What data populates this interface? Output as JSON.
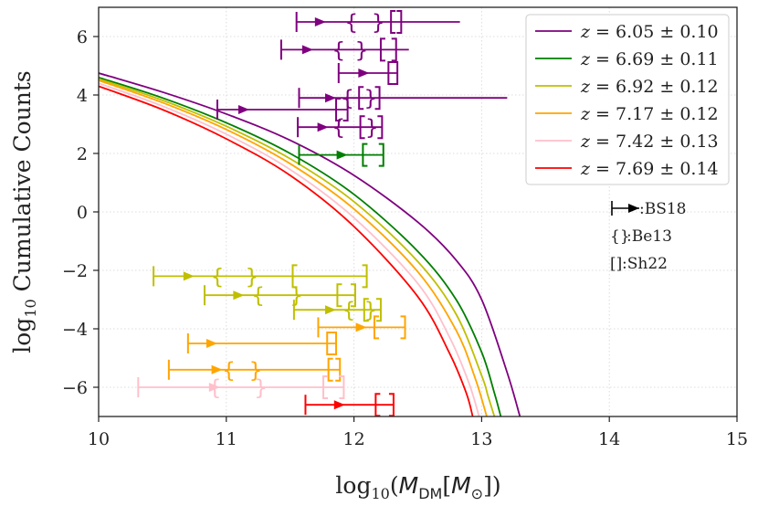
{
  "chart_data": {
    "type": "line",
    "xlabel": "log10(M_DM[M_⊙])",
    "ylabel": "log10 Cumulative Counts",
    "xlabel_parts": {
      "log": "log",
      "sub": "10",
      "open": "(",
      "M": "M",
      "DM": "DM",
      "bropen": "[",
      "Msun": "M",
      "sun": "⊙",
      "close": "])"
    },
    "ylabel_parts": {
      "log": "log",
      "sub": "10",
      "rest": " Cumulative Counts"
    },
    "xlim": [
      10,
      15
    ],
    "ylim": [
      -7,
      7
    ],
    "x_ticks": [
      10,
      11,
      12,
      13,
      14,
      15
    ],
    "y_ticks": [
      -6,
      -4,
      -2,
      0,
      2,
      4,
      6
    ],
    "x_tick_labels": [
      "10",
      "11",
      "12",
      "13",
      "14",
      "15"
    ],
    "y_tick_labels": [
      "−6",
      "−4",
      "−2",
      "0",
      "2",
      "4",
      "6"
    ],
    "grid": true,
    "legend_position": "top-right",
    "series": [
      {
        "name": "z = 6.05 ± 0.10",
        "label_z": "z",
        "label_eq": " = 6.05 ± 0.10",
        "color": "#7f007f",
        "curve": [
          [
            10.0,
            4.75
          ],
          [
            10.5,
            4.1
          ],
          [
            11.0,
            3.35
          ],
          [
            11.5,
            2.45
          ],
          [
            12.0,
            1.25
          ],
          [
            12.5,
            -0.35
          ],
          [
            12.8,
            -1.65
          ],
          [
            13.0,
            -3.0
          ],
          [
            13.2,
            -5.5
          ],
          [
            13.3,
            -7.0
          ]
        ]
      },
      {
        "name": "z = 6.69 ± 0.11",
        "label_z": "z",
        "label_eq": " = 6.69 ± 0.11",
        "color": "#007f00",
        "curve": [
          [
            10.0,
            4.6
          ],
          [
            10.5,
            3.9
          ],
          [
            11.0,
            3.05
          ],
          [
            11.5,
            2.0
          ],
          [
            12.0,
            0.6
          ],
          [
            12.5,
            -1.35
          ],
          [
            12.8,
            -3.0
          ],
          [
            13.0,
            -4.8
          ],
          [
            13.1,
            -6.2
          ],
          [
            13.15,
            -7.0
          ]
        ]
      },
      {
        "name": "z = 6.92 ± 0.12",
        "label_z": "z",
        "label_eq": " = 6.92 ± 0.12",
        "color": "#bfbf00",
        "curve": [
          [
            10.0,
            4.55
          ],
          [
            10.5,
            3.82
          ],
          [
            11.0,
            2.93
          ],
          [
            11.5,
            1.82
          ],
          [
            12.0,
            0.35
          ],
          [
            12.5,
            -1.7
          ],
          [
            12.8,
            -3.5
          ],
          [
            13.0,
            -5.6
          ],
          [
            13.05,
            -6.3
          ],
          [
            13.1,
            -7.0
          ]
        ]
      },
      {
        "name": "z = 7.17 ± 0.12",
        "label_z": "z",
        "label_eq": " = 7.17 ± 0.12",
        "color": "#ffa500",
        "curve": [
          [
            10.0,
            4.5
          ],
          [
            10.5,
            3.74
          ],
          [
            11.0,
            2.82
          ],
          [
            11.5,
            1.65
          ],
          [
            12.0,
            0.1
          ],
          [
            12.5,
            -2.05
          ],
          [
            12.8,
            -4.05
          ],
          [
            12.95,
            -5.7
          ],
          [
            13.04,
            -7.0
          ]
        ]
      },
      {
        "name": "z = 7.42 ± 0.13",
        "label_z": "z",
        "label_eq": " = 7.42 ± 0.13",
        "color": "#ffc0cb",
        "curve": [
          [
            10.0,
            4.4
          ],
          [
            10.5,
            3.62
          ],
          [
            11.0,
            2.66
          ],
          [
            11.5,
            1.45
          ],
          [
            12.0,
            -0.2
          ],
          [
            12.5,
            -2.45
          ],
          [
            12.75,
            -4.3
          ],
          [
            12.9,
            -5.85
          ],
          [
            12.98,
            -7.0
          ]
        ]
      },
      {
        "name": "z = 7.69 ± 0.14",
        "label_z": "z",
        "label_eq": " = 7.69 ± 0.14",
        "color": "#ff0000",
        "curve": [
          [
            10.0,
            4.3
          ],
          [
            10.5,
            3.5
          ],
          [
            11.0,
            2.5
          ],
          [
            11.5,
            1.25
          ],
          [
            12.0,
            -0.5
          ],
          [
            12.5,
            -2.9
          ],
          [
            12.75,
            -4.85
          ],
          [
            12.88,
            -6.2
          ],
          [
            12.93,
            -7.0
          ]
        ]
      }
    ],
    "observations": [
      {
        "color": "#7f007f",
        "y": 6.5,
        "bs18_low": 11.55,
        "bs18_pt": 11.78,
        "be13": [
          11.98,
          12.19
        ],
        "sh22": [
          12.29,
          12.37
        ],
        "right": 12.83
      },
      {
        "color": "#7f007f",
        "y": 5.55,
        "bs18_low": 11.43,
        "bs18_pt": 11.68,
        "be13": [
          11.88,
          12.06
        ],
        "sh22": [
          12.21,
          12.33
        ],
        "right": 12.43
      },
      {
        "color": "#7f007f",
        "y": 4.75,
        "bs18_low": 11.88,
        "bs18_pt": 12.12,
        "be13": null,
        "sh22": [
          12.27,
          12.34
        ],
        "right": 12.34
      },
      {
        "color": "#7f007f",
        "y": 3.9,
        "bs18_low": 11.57,
        "bs18_pt": 11.86,
        "be13": [
          11.95,
          12.13
        ],
        "sh22": [
          12.04,
          12.2
        ],
        "right": 13.2
      },
      {
        "color": "#7f007f",
        "y": 3.5,
        "bs18_low": 10.93,
        "bs18_pt": 11.18,
        "be13": null,
        "sh22": [
          11.86,
          11.95
        ],
        "right": 11.95
      },
      {
        "color": "#7f007f",
        "y": 2.9,
        "bs18_low": 11.56,
        "bs18_pt": 11.8,
        "be13": [
          11.88,
          12.14
        ],
        "sh22": [
          12.05,
          12.22
        ],
        "right": 12.22
      },
      {
        "color": "#007f00",
        "y": 1.95,
        "bs18_low": 11.57,
        "bs18_pt": 11.95,
        "be13": null,
        "sh22": [
          12.07,
          12.23
        ],
        "right": 12.23
      },
      {
        "color": "#bfbf00",
        "y": -2.2,
        "bs18_low": 10.43,
        "bs18_pt": 10.75,
        "be13": [
          10.93,
          11.2
        ],
        "sh22": [
          11.52,
          12.1
        ],
        "right": 12.1
      },
      {
        "color": "#bfbf00",
        "y": -2.85,
        "bs18_low": 10.83,
        "bs18_pt": 11.14,
        "be13": [
          11.25,
          11.55
        ],
        "sh22": [
          11.87,
          12.01
        ],
        "right": 12.01
      },
      {
        "color": "#bfbf00",
        "y": -3.35,
        "bs18_low": 11.53,
        "bs18_pt": 11.86,
        "be13": [
          11.96,
          12.13
        ],
        "sh22": [
          12.08,
          12.21
        ],
        "right": 12.21
      },
      {
        "color": "#ffa500",
        "y": -3.95,
        "bs18_low": 11.72,
        "bs18_pt": 12.1,
        "be13": null,
        "sh22": [
          12.16,
          12.4
        ],
        "right": 12.4
      },
      {
        "color": "#ffa500",
        "y": -4.5,
        "bs18_low": 10.7,
        "bs18_pt": 10.93,
        "be13": null,
        "sh22": [
          11.79,
          11.86
        ],
        "right": 11.86
      },
      {
        "color": "#ffa500",
        "y": -5.4,
        "bs18_low": 10.55,
        "bs18_pt": 10.97,
        "be13": [
          11.02,
          11.23
        ],
        "sh22": [
          11.8,
          11.89
        ],
        "right": 11.89
      },
      {
        "color": "#ffc0cb",
        "y": -6.0,
        "bs18_low": 10.31,
        "bs18_pt": 10.95,
        "be13": [
          10.91,
          11.27
        ],
        "sh22": [
          11.76,
          11.92
        ],
        "right": 11.92
      },
      {
        "color": "#ff0000",
        "y": -6.6,
        "bs18_low": 11.62,
        "bs18_pt": 11.93,
        "be13": null,
        "sh22": [
          12.17,
          12.31
        ],
        "right": 12.31
      }
    ],
    "annotations": {
      "bs18": ":BS18",
      "be13": ":Be13",
      "sh22": ":Sh22",
      "be13_symbol": "{}",
      "sh22_symbol": "[]"
    }
  }
}
